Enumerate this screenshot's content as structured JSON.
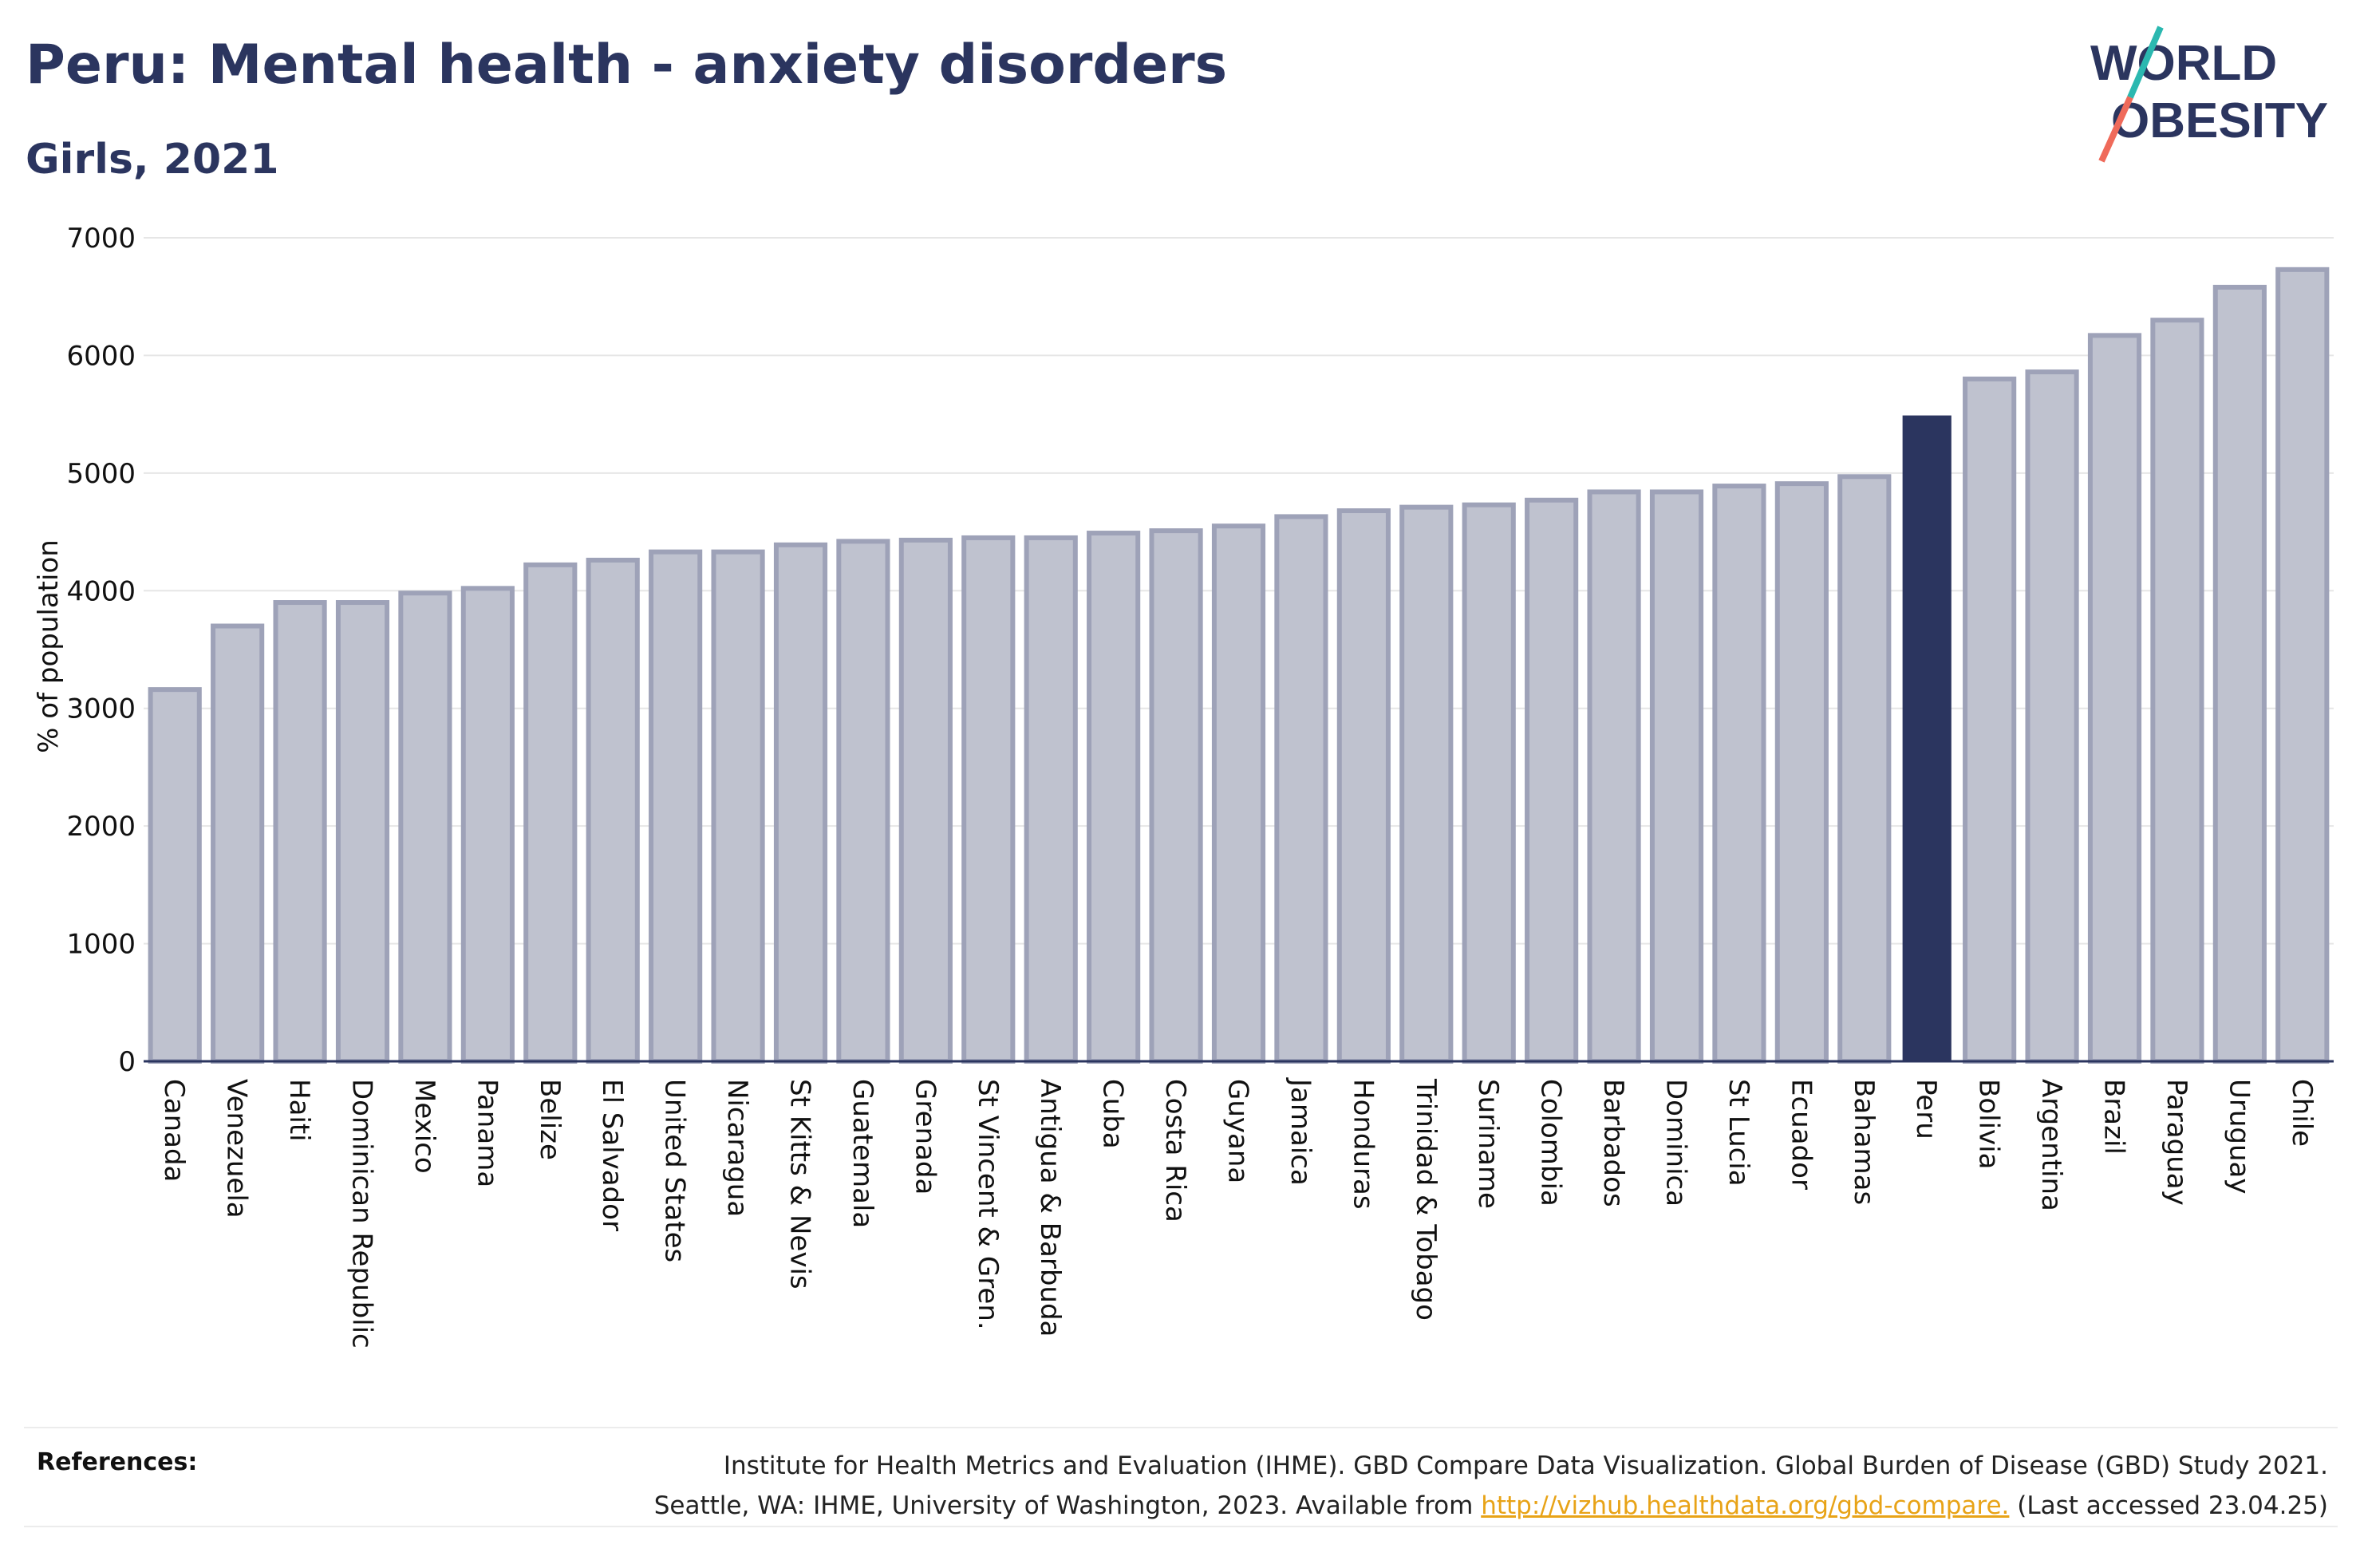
{
  "title": "Peru: Mental health - anxiety disorders",
  "subtitle": "Girls, 2021",
  "logo": {
    "line1": "WORLD",
    "line2": "OBESITY",
    "slash_colors": [
      "#2bb8b0",
      "#ef6a5a"
    ]
  },
  "colors": {
    "highlight": "#2b355f",
    "bar": "#bfc2cf",
    "bar_border": "#9ea2b8",
    "axis": "#2b355f"
  },
  "chart_data": {
    "type": "bar",
    "title": "Peru: Mental health - anxiety disorders",
    "subtitle": "Girls, 2021",
    "xlabel": "",
    "ylabel": "% of population",
    "ylim": [
      0,
      7000
    ],
    "yticks": [
      0,
      1000,
      2000,
      3000,
      4000,
      5000,
      6000,
      7000
    ],
    "grid": true,
    "highlight": "Peru",
    "categories": [
      "Canada",
      "Venezuela",
      "Haiti",
      "Dominican Republic",
      "Mexico",
      "Panama",
      "Belize",
      "El Salvador",
      "United States",
      "Nicaragua",
      "St Kitts & Nevis",
      "Guatemala",
      "Grenada",
      "St Vincent & Gren.",
      "Antigua & Barbuda",
      "Cuba",
      "Costa Rica",
      "Guyana",
      "Jamaica",
      "Honduras",
      "Trinidad & Tobago",
      "Suriname",
      "Colombia",
      "Barbados",
      "Dominica",
      "St Lucia",
      "Ecuador",
      "Bahamas",
      "Peru",
      "Bolivia",
      "Argentina",
      "Brazil",
      "Paraguay",
      "Uruguay",
      "Chile"
    ],
    "values": [
      3160,
      3700,
      3900,
      3900,
      3980,
      4020,
      4220,
      4260,
      4330,
      4330,
      4390,
      4420,
      4430,
      4450,
      4450,
      4490,
      4510,
      4550,
      4630,
      4680,
      4710,
      4730,
      4770,
      4840,
      4840,
      4890,
      4910,
      4970,
      5490,
      5800,
      5860,
      6170,
      6300,
      6580,
      6730
    ]
  },
  "references": {
    "label": "References:",
    "line1": "Institute for Health Metrics and Evaluation (IHME). GBD Compare Data Visualization. Global Burden of Disease (GBD) Study 2021.",
    "line2_prefix": "Seattle, WA: IHME, University of Washington, 2023. Available from ",
    "link": "http://vizhub.healthdata.org/gbd-compare.",
    "line2_suffix": " (Last accessed 23.04.25)"
  }
}
